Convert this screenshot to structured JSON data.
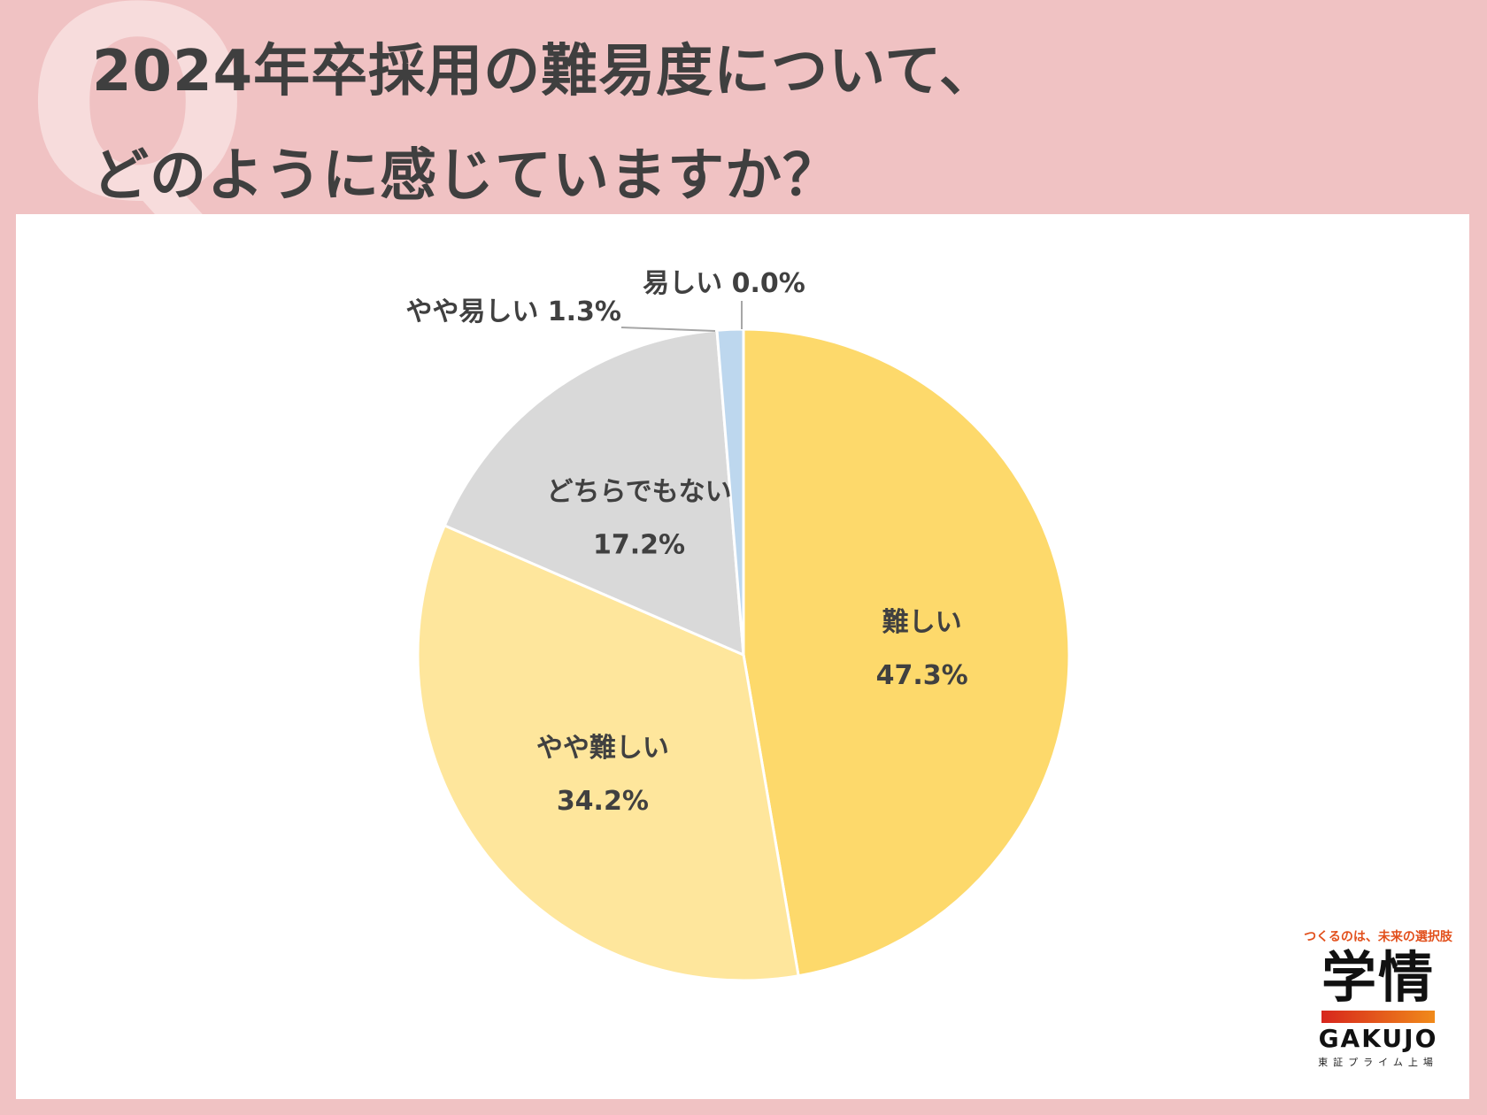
{
  "title": {
    "line1": "2024年卒採用の難易度について、",
    "line2": "どのように感じていますか？",
    "q_letter": "Q"
  },
  "chart_data": {
    "type": "pie",
    "slices": [
      {
        "label": "難しい",
        "value": 47.3,
        "display": "47.3%",
        "color": "#fdd96b"
      },
      {
        "label": "やや難しい",
        "value": 34.2,
        "display": "34.2%",
        "color": "#fee69c"
      },
      {
        "label": "どちらでもない",
        "value": 17.2,
        "display": "17.2%",
        "color": "#d9d9d9"
      },
      {
        "label": "やや易しい",
        "value": 1.3,
        "display": "1.3%",
        "color": "#bdd7ee"
      },
      {
        "label": "易しい",
        "value": 0.0,
        "display": "0.0%",
        "color": "#9dc3e6"
      }
    ]
  },
  "logo": {
    "tagline": "つくるのは、未来の選択肢",
    "brand_kanji": "学情",
    "brand_en": "GAKUJO",
    "sub": "東証プライム上場"
  }
}
